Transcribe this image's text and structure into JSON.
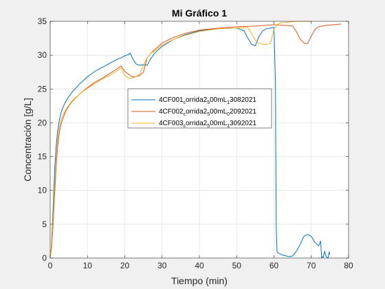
{
  "chart_data": {
    "type": "line",
    "title": "Mi Gráfico 1",
    "xlabel": "Tiempo (min)",
    "ylabel": "Concentración [g/L]",
    "xlim": [
      0,
      80
    ],
    "ylim": [
      0,
      35
    ],
    "xticks": [
      0,
      10,
      20,
      30,
      40,
      50,
      60,
      70,
      80
    ],
    "yticks": [
      0,
      5,
      10,
      15,
      20,
      25,
      30,
      35
    ],
    "grid": true,
    "legend_position": "center",
    "series": [
      {
        "name": "4CF001_corrida2_500mL_13082021",
        "legend": {
          "parts": [
            "4CF001",
            "c",
            "orrida2",
            "5",
            "00mL",
            "1",
            "3082021"
          ],
          "subs": [
            1,
            3,
            5
          ]
        },
        "color": "#0072BD",
        "x": [
          0.0,
          0.3,
          0.6,
          0.9,
          1.2,
          1.6,
          2.0,
          2.5,
          3.0,
          4.0,
          5.0,
          6.0,
          8.0,
          10.0,
          12.0,
          14.0,
          16.0,
          18.0,
          19.0,
          20.0,
          21.0,
          21.5,
          22.0,
          23.0,
          24.0,
          25.0,
          26.0,
          27.0,
          28.0,
          30.0,
          33.0,
          36.0,
          40.0,
          45.0,
          50.0,
          52.0,
          53.0,
          54.0,
          55.0,
          56.0,
          57.0,
          58.0,
          59.0,
          60.0,
          60.4,
          60.6,
          60.8,
          61.0,
          62.0,
          64.0,
          65.0,
          66.0,
          67.0,
          68.0,
          69.0,
          70.0,
          71.0,
          72.0,
          72.5,
          72.8,
          73.0,
          73.2,
          73.6,
          74.0,
          74.5,
          74.8,
          75.0
        ],
        "y": [
          0.3,
          1.5,
          5.0,
          9.0,
          13.0,
          16.5,
          18.8,
          20.5,
          21.7,
          23.0,
          23.9,
          24.6,
          25.8,
          26.8,
          27.6,
          28.2,
          28.8,
          29.4,
          29.6,
          29.9,
          30.1,
          30.3,
          29.6,
          28.7,
          28.5,
          28.6,
          28.5,
          29.5,
          30.3,
          31.3,
          32.3,
          33.0,
          33.6,
          33.9,
          34.0,
          33.6,
          32.5,
          31.6,
          31.4,
          32.8,
          33.6,
          33.9,
          34.0,
          34.1,
          26.0,
          5.0,
          1.0,
          0.8,
          0.5,
          0.2,
          0.3,
          1.0,
          2.0,
          3.2,
          3.5,
          3.2,
          2.3,
          1.8,
          2.5,
          0.0,
          0.2,
          0.1,
          1.0,
          0.2,
          0.0,
          0.9,
          0.5
        ]
      },
      {
        "name": "4CF002_corrida2_500mL_02092021",
        "legend": {
          "parts": [
            "4CF002",
            "c",
            "orrida2",
            "5",
            "00mL",
            "0",
            "2092021"
          ],
          "subs": [
            1,
            3,
            5
          ]
        },
        "color": "#D95319",
        "x": [
          0.0,
          0.4,
          0.8,
          1.2,
          1.6,
          2.0,
          2.5,
          3.0,
          4.0,
          5.0,
          6.0,
          8.0,
          10.0,
          12.0,
          14.0,
          16.0,
          18.0,
          19.0,
          20.0,
          21.0,
          22.0,
          23.0,
          24.0,
          25.0,
          26.0,
          27.0,
          28.0,
          30.0,
          33.0,
          36.0,
          40.0,
          45.0,
          50.0,
          55.0,
          60.0,
          63.0,
          65.0,
          66.0,
          67.0,
          68.0,
          69.0,
          70.0,
          71.0,
          72.0,
          74.0,
          76.0,
          78.0
        ],
        "y": [
          0.2,
          1.5,
          5.0,
          9.5,
          13.5,
          16.5,
          18.8,
          20.0,
          21.5,
          22.5,
          23.2,
          24.3,
          25.2,
          26.0,
          26.6,
          27.3,
          28.0,
          28.4,
          27.6,
          27.2,
          26.8,
          26.8,
          27.0,
          27.5,
          29.6,
          30.3,
          30.8,
          31.8,
          32.6,
          33.2,
          33.7,
          34.0,
          34.2,
          34.3,
          34.5,
          34.4,
          34.3,
          33.5,
          32.4,
          31.8,
          31.7,
          32.8,
          33.8,
          34.2,
          34.4,
          34.5,
          34.6
        ]
      },
      {
        "name": "4CF003_corrida2_500mL_13092021",
        "legend": {
          "parts": [
            "4CF003",
            "c",
            "orrida2",
            "5",
            "00mL",
            "1",
            "3092021"
          ],
          "subs": [
            1,
            3,
            5
          ]
        },
        "color": "#EDB120",
        "x": [
          0.0,
          0.4,
          0.8,
          1.2,
          1.6,
          2.0,
          2.5,
          3.0,
          4.0,
          5.0,
          6.0,
          8.0,
          10.0,
          12.0,
          14.0,
          16.0,
          18.0,
          19.0,
          20.0,
          21.0,
          22.0,
          23.0,
          24.0,
          25.0,
          26.0,
          27.0,
          28.0,
          30.0,
          33.0,
          36.0,
          40.0,
          45.0,
          50.0,
          53.0,
          54.0,
          55.0,
          56.0,
          57.0,
          58.0,
          59.0,
          60.0,
          61.0,
          62.0,
          64.0,
          66.0,
          68.0,
          70.0
        ],
        "y": [
          0.2,
          2.0,
          6.0,
          11.0,
          14.5,
          17.5,
          19.5,
          20.6,
          21.8,
          22.6,
          23.3,
          24.3,
          25.1,
          25.8,
          26.5,
          27.0,
          27.7,
          28.1,
          27.0,
          26.6,
          26.6,
          26.8,
          27.2,
          28.5,
          29.6,
          30.3,
          30.6,
          31.5,
          32.3,
          32.9,
          33.5,
          33.9,
          34.0,
          34.1,
          33.2,
          32.2,
          31.7,
          31.6,
          31.6,
          31.7,
          33.8,
          34.6,
          34.8,
          34.9,
          35.0,
          35.0,
          35.0
        ]
      }
    ]
  }
}
